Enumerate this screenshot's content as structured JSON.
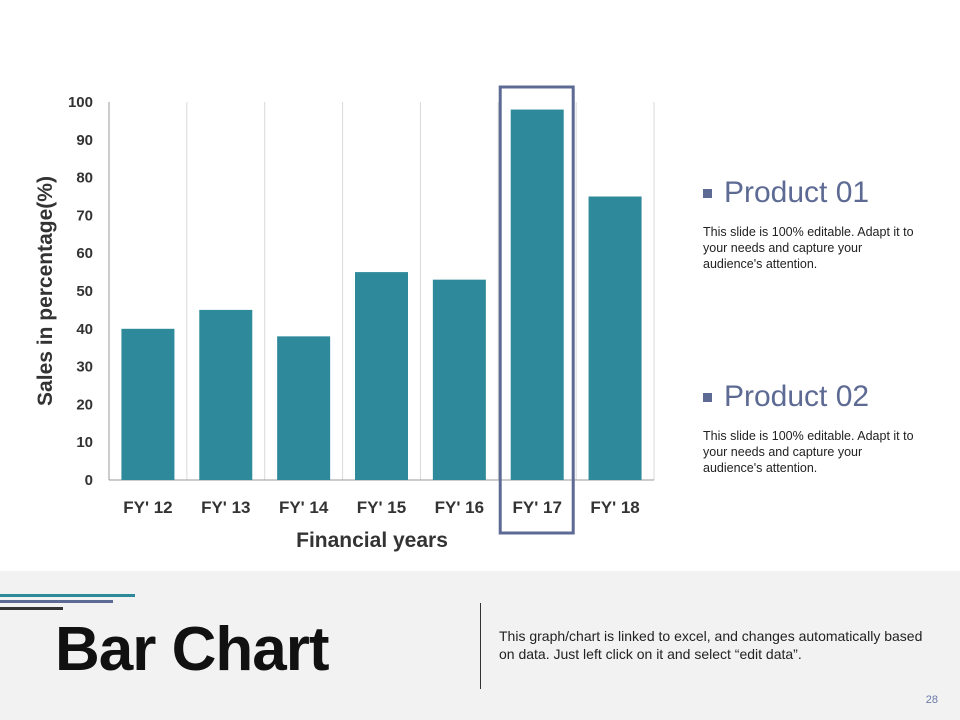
{
  "chart_data": {
    "type": "bar",
    "categories": [
      "FY' 12",
      "FY' 13",
      "FY' 14",
      "FY' 15",
      "FY' 16",
      "FY' 17",
      "FY' 18"
    ],
    "values": [
      40,
      45,
      38,
      55,
      53,
      98,
      75
    ],
    "xlabel": "Financial years",
    "ylabel": "Sales in percentage(%)",
    "ylim": [
      0,
      100
    ],
    "yticks": [
      "0",
      "10",
      "20",
      "30",
      "40",
      "50",
      "60",
      "70",
      "80",
      "90",
      "100"
    ],
    "grid": "vertical",
    "bar_color": "#2e8a9a",
    "highlighted_category": "FY' 17",
    "highlight_color": "#5d6a93"
  },
  "products": [
    {
      "title": "Product 01",
      "description": "This slide is 100% editable. Adapt it to your needs and capture your audience's attention."
    },
    {
      "title": "Product 02",
      "description": "This slide is 100% editable. Adapt it to your needs and capture your audience's attention."
    }
  ],
  "footer": {
    "title": "Bar Chart",
    "note": "This graph/chart is linked to excel, and changes automatically based on data. Just left click on it and select “edit data”.",
    "page_number": "28"
  },
  "colors": {
    "accent": "#5d6a93",
    "teal": "#2e8a9a",
    "footer_bg": "#f2f2f2"
  }
}
